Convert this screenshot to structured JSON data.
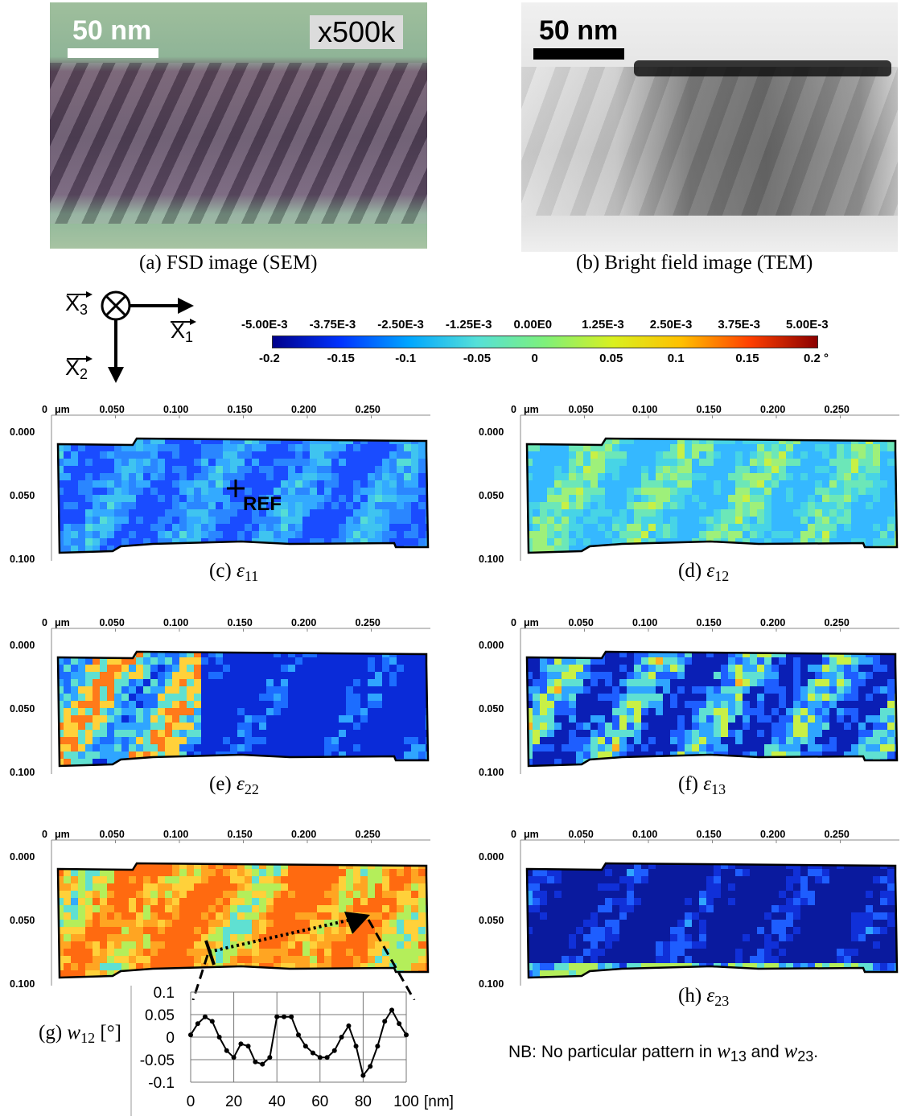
{
  "figure": {
    "panel_a": {
      "caption": "(a) FSD image (SEM)",
      "scale_label": "50 nm",
      "magnification": "x500k"
    },
    "panel_b": {
      "caption": "(b) Bright field image (TEM)",
      "scale_label": "50 nm"
    },
    "axes_legend": {
      "x3": "X",
      "x3_sub": "3",
      "x1": "X",
      "x1_sub": "1",
      "x2": "X",
      "x2_sub": "2"
    },
    "colorbar": {
      "strain_labels": [
        "-5.00E-3",
        "-3.75E-3",
        "-2.50E-3",
        "-1.25E-3",
        "0.00E0",
        "1.25E-3",
        "2.50E-3",
        "3.75E-3",
        "5.00E-3"
      ],
      "rotation_labels": [
        "-0.2",
        "-0.15",
        "-0.1",
        "-0.05",
        "0",
        "0.05",
        "0.1",
        "0.15",
        "0.2 °"
      ],
      "colors": [
        "#00008b",
        "#0033ff",
        "#00a6ff",
        "#55e0d8",
        "#7ef07a",
        "#d9f020",
        "#ffc000",
        "#ff4000",
        "#8b0000"
      ]
    },
    "map_axes": {
      "x_unit": "μm",
      "x_ticks": [
        "0",
        "0.050",
        "0.100",
        "0.150",
        "0.200",
        "0.250"
      ],
      "y_ticks": [
        "0.000",
        "0.050",
        "0.100"
      ]
    },
    "maps": [
      {
        "id": "c",
        "label": "(c) ",
        "sym": "ε",
        "sub": "11",
        "ref_label": "REF"
      },
      {
        "id": "d",
        "label": "(d) ",
        "sym": "ε",
        "sub": "12"
      },
      {
        "id": "e",
        "label": "(e) ",
        "sym": "ε",
        "sub": "22"
      },
      {
        "id": "f",
        "label": "(f) ",
        "sym": "ε",
        "sub": "13"
      },
      {
        "id": "g",
        "label": "(g) ",
        "sym": "w",
        "sub": "12",
        "unit": " [°]"
      },
      {
        "id": "h",
        "label": "(h) ",
        "sym": "ε",
        "sub": "23"
      }
    ],
    "note": {
      "prefix": "NB: No particular pattern in ",
      "w13": "w",
      "w13_sub": "13",
      "mid": " and ",
      "w23": "w",
      "w23_sub": "23",
      "suffix": "."
    },
    "chart_data": {
      "type": "line",
      "x": [
        0,
        3.3,
        6.7,
        10,
        13.3,
        16.7,
        20,
        23.3,
        26.7,
        30,
        33.3,
        36.7,
        40,
        43.3,
        46.7,
        50,
        53.3,
        56.7,
        60,
        63.3,
        66.7,
        70,
        73.3,
        76.7,
        80,
        83.3,
        86.7,
        90,
        93.3,
        96.7,
        100
      ],
      "y": [
        0.005,
        0.03,
        0.045,
        0.035,
        0.0,
        -0.03,
        -0.045,
        -0.015,
        -0.02,
        -0.055,
        -0.06,
        -0.045,
        0.045,
        0.045,
        0.045,
        0.005,
        -0.02,
        -0.035,
        -0.045,
        -0.045,
        -0.03,
        0.0,
        0.025,
        -0.02,
        -0.085,
        -0.065,
        -0.02,
        0.035,
        0.06,
        0.03,
        0.005
      ],
      "xlim": [
        0,
        100
      ],
      "ylim": [
        -0.1,
        0.1
      ],
      "x_ticks": [
        "0",
        "20",
        "40",
        "60",
        "80",
        "100"
      ],
      "y_ticks": [
        "0.1",
        "0.05",
        "0",
        "-0.05",
        "-0.1"
      ],
      "xlabel": "[nm]",
      "ylabel": "",
      "grid": true
    }
  }
}
